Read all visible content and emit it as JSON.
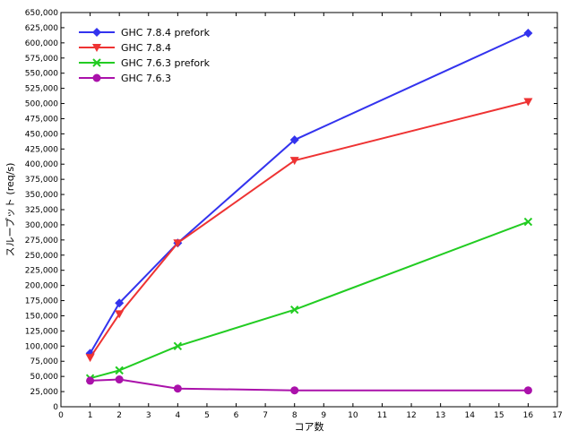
{
  "chart_data": {
    "type": "line",
    "title": "",
    "xlabel": "コア数",
    "ylabel": "スループット (req/s)",
    "xlim": [
      0,
      17
    ],
    "ylim": [
      0,
      650000
    ],
    "xticks": [
      0,
      1,
      2,
      3,
      4,
      5,
      6,
      7,
      8,
      9,
      10,
      11,
      12,
      13,
      14,
      15,
      16,
      17
    ],
    "yticks": [
      0,
      25000,
      50000,
      75000,
      100000,
      125000,
      150000,
      175000,
      200000,
      225000,
      250000,
      275000,
      300000,
      325000,
      350000,
      375000,
      400000,
      425000,
      450000,
      475000,
      500000,
      525000,
      550000,
      575000,
      600000,
      625000,
      650000
    ],
    "ytick_labels": [
      "0",
      "25,000",
      "50,000",
      "75,000",
      "100,000",
      "125,000",
      "150,000",
      "175,000",
      "200,000",
      "225,000",
      "250,000",
      "275,000",
      "300,000",
      "325,000",
      "350,000",
      "375,000",
      "400,000",
      "425,000",
      "450,000",
      "475,000",
      "500,000",
      "525,000",
      "550,000",
      "575,000",
      "600,000",
      "625,000",
      "650,000"
    ],
    "grid": false,
    "legend_position": "top-left",
    "x": [
      1,
      2,
      4,
      8,
      16
    ],
    "series": [
      {
        "name": "GHC 7.8.4 prefork",
        "color": "#3333ee",
        "marker": "diamond",
        "values": [
          88000,
          171000,
          270000,
          440000,
          616000
        ]
      },
      {
        "name": "GHC 7.8.4",
        "color": "#ee3333",
        "marker": "triangle-down",
        "values": [
          81000,
          153000,
          270000,
          406000,
          503000
        ]
      },
      {
        "name": "GHC 7.6.3 prefork",
        "color": "#22cc22",
        "marker": "cross",
        "values": [
          47000,
          60000,
          100000,
          160000,
          305000
        ]
      },
      {
        "name": "GHC 7.6.3",
        "color": "#aa11aa",
        "marker": "circle",
        "values": [
          43000,
          45000,
          30000,
          27000,
          27000
        ]
      }
    ]
  }
}
